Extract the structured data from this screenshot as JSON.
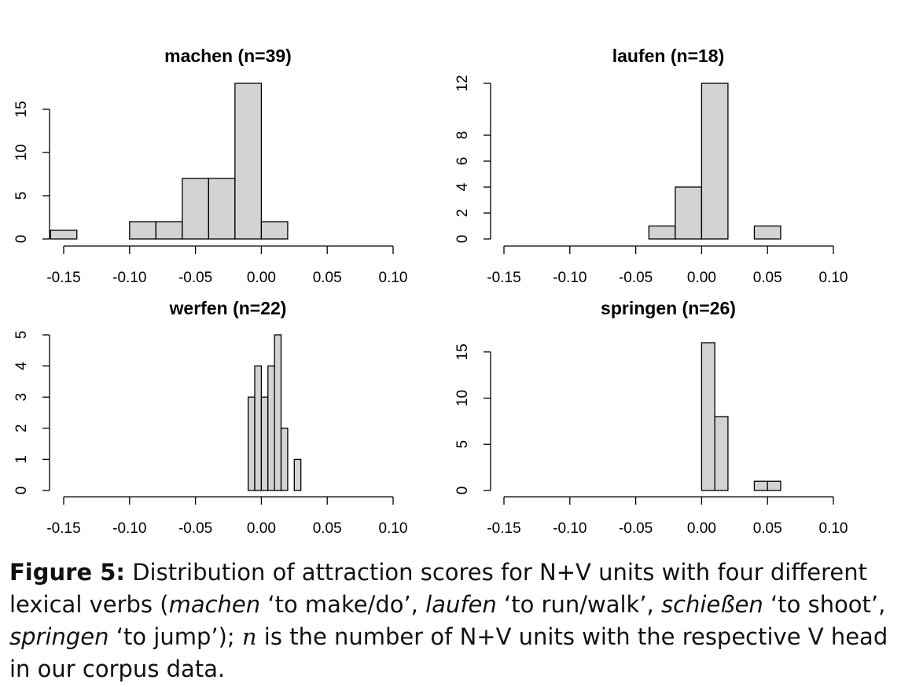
{
  "chart_data": [
    {
      "type": "bar",
      "title": "machen (n=39)",
      "bins": [
        -0.16,
        -0.14,
        -0.12,
        -0.1,
        -0.08,
        -0.06,
        -0.04,
        -0.02,
        0.0,
        0.02
      ],
      "counts": [
        1,
        0,
        0,
        2,
        2,
        7,
        7,
        18,
        2
      ],
      "xlim": [
        -0.15,
        0.1
      ],
      "xticks": [
        -0.15,
        -0.1,
        -0.05,
        0.0,
        0.05,
        0.1
      ],
      "xtick_labels": [
        "-0.15",
        "-0.10",
        "-0.05",
        "0.00",
        "0.05",
        "0.10"
      ],
      "ylim": [
        0,
        18
      ],
      "yticks": [
        0,
        5,
        10,
        15
      ],
      "ytick_labels": [
        "0",
        "5",
        "10",
        "15"
      ]
    },
    {
      "type": "bar",
      "title": "laufen (n=18)",
      "bins": [
        -0.04,
        -0.02,
        0.0,
        0.02,
        0.04,
        0.06
      ],
      "counts": [
        1,
        4,
        12,
        0,
        1
      ],
      "xlim": [
        -0.15,
        0.1
      ],
      "xticks": [
        -0.15,
        -0.1,
        -0.05,
        0.0,
        0.05,
        0.1
      ],
      "xtick_labels": [
        "-0.15",
        "-0.10",
        "-0.05",
        "0.00",
        "0.05",
        "0.10"
      ],
      "ylim": [
        0,
        12
      ],
      "yticks": [
        0,
        2,
        4,
        6,
        8,
        12
      ],
      "ytick_labels": [
        "0",
        "2",
        "4",
        "6",
        "8",
        "12"
      ]
    },
    {
      "type": "bar",
      "title": "werfen (n=22)",
      "bins": [
        -0.01,
        -0.005,
        0.0,
        0.005,
        0.01,
        0.015,
        0.02,
        0.025,
        0.03
      ],
      "counts": [
        3,
        4,
        3,
        4,
        5,
        2,
        0,
        1
      ],
      "xlim": [
        -0.15,
        0.1
      ],
      "xticks": [
        -0.15,
        -0.1,
        -0.05,
        0.0,
        0.05,
        0.1
      ],
      "xtick_labels": [
        "-0.15",
        "-0.10",
        "-0.05",
        "0.00",
        "0.05",
        "0.10"
      ],
      "ylim": [
        0,
        5
      ],
      "yticks": [
        0,
        1,
        2,
        3,
        4,
        5
      ],
      "ytick_labels": [
        "0",
        "1",
        "2",
        "3",
        "4",
        "5"
      ]
    },
    {
      "type": "bar",
      "title": "springen (n=26)",
      "bins": [
        0.0,
        0.01,
        0.02,
        0.03,
        0.04,
        0.05,
        0.06
      ],
      "counts": [
        16,
        8,
        0,
        0,
        1,
        1
      ],
      "xlim": [
        -0.15,
        0.1
      ],
      "xticks": [
        -0.15,
        -0.1,
        -0.05,
        0.0,
        0.05,
        0.1
      ],
      "xtick_labels": [
        "-0.15",
        "-0.10",
        "-0.05",
        "0.00",
        "0.05",
        "0.10"
      ],
      "ylim": [
        0,
        16
      ],
      "yticks": [
        0,
        5,
        10,
        15
      ],
      "ytick_labels": [
        "0",
        "5",
        "10",
        "15"
      ]
    }
  ],
  "colors": {
    "bar_fill": "#d3d3d3",
    "bar_stroke": "#000000"
  },
  "caption": {
    "label": "Figure 5:",
    "t1": " Distribution of attraction scores for N+V units with four different lexical verbs (",
    "i1": "machen",
    "t2": " ‘to make/do’, ",
    "i2": "laufen",
    "t3": " ‘to run/walk’, ",
    "i3": "schießen",
    "t4": " ‘to shoot’, ",
    "i4": "springen",
    "t5": " ‘to jump’); ",
    "m1": "n",
    "t6": " is the number of N+V units with the respective V head in our corpus data."
  }
}
